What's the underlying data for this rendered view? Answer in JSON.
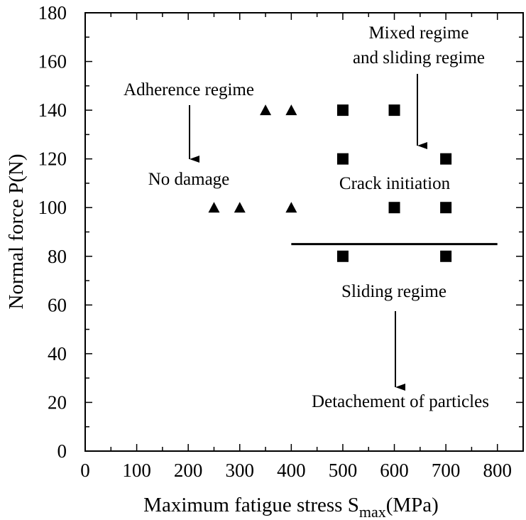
{
  "chart_data": {
    "type": "scatter",
    "xlabel": "Maximum fatigue stress S",
    "xlabel_sub": "max",
    "xlabel_unit": "(MPa)",
    "ylabel": "Normal force P(N)",
    "xlim": [
      0,
      850
    ],
    "ylim": [
      0,
      180
    ],
    "x_ticks": [
      0,
      100,
      200,
      300,
      400,
      500,
      600,
      700,
      800
    ],
    "y_ticks": [
      0,
      20,
      40,
      60,
      80,
      100,
      120,
      140,
      160,
      180
    ],
    "grid": false,
    "series": [
      {
        "marker": "triangle",
        "color": "#000000",
        "points": [
          {
            "x": 250,
            "y": 100
          },
          {
            "x": 300,
            "y": 100
          },
          {
            "x": 400,
            "y": 100
          },
          {
            "x": 350,
            "y": 140
          },
          {
            "x": 400,
            "y": 140
          }
        ]
      },
      {
        "marker": "square",
        "color": "#000000",
        "points": [
          {
            "x": 500,
            "y": 140
          },
          {
            "x": 600,
            "y": 140
          },
          {
            "x": 500,
            "y": 120
          },
          {
            "x": 700,
            "y": 120
          },
          {
            "x": 600,
            "y": 100
          },
          {
            "x": 700,
            "y": 100
          },
          {
            "x": 500,
            "y": 80
          },
          {
            "x": 700,
            "y": 80
          }
        ]
      }
    ],
    "boundary_line": {
      "x_start": 400,
      "x_end": 800,
      "y": 85
    },
    "annotations": {
      "adherence": "Adherence regime",
      "no_damage": "No damage",
      "mixed_1": "Mixed regime",
      "mixed_2": "and sliding regime",
      "crack": "Crack initiation",
      "sliding": "Sliding regime",
      "detachment": "Detachement of particles"
    }
  }
}
